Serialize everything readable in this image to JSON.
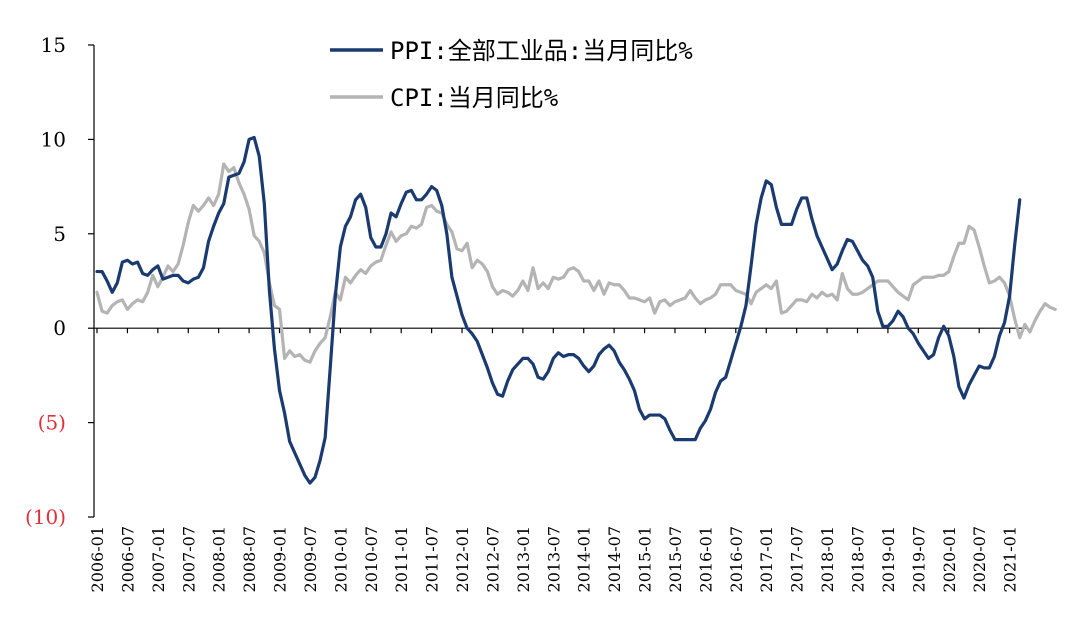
{
  "chart_data": {
    "type": "line",
    "title": "",
    "xlabel": "",
    "ylabel": "",
    "ylim": [
      -10,
      15
    ],
    "yticks": [
      15,
      10,
      5,
      0,
      -5,
      -10
    ],
    "ytick_labels": [
      "15",
      "10",
      "5",
      "0",
      "(5)",
      "(10)"
    ],
    "negative_label_color": "#e0303a",
    "start_month": "2006-01",
    "x_tick_labels": [
      "2006-01",
      "2006-07",
      "2007-01",
      "2007-07",
      "2008-01",
      "2008-07",
      "2009-01",
      "2009-07",
      "2010-01",
      "2010-07",
      "2011-01",
      "2011-07",
      "2012-01",
      "2012-07",
      "2013-01",
      "2013-07",
      "2014-01",
      "2014-07",
      "2015-01",
      "2015-07",
      "2016-01",
      "2016-07",
      "2017-01",
      "2017-07",
      "2018-01",
      "2018-07",
      "2019-01",
      "2019-07",
      "2020-01",
      "2020-07",
      "2021-01"
    ],
    "legend": {
      "position": "top-center"
    },
    "series": [
      {
        "name": "PPI:全部工业品:当月同比%",
        "color": "#1a3a70",
        "values": [
          3.0,
          3.0,
          2.5,
          1.9,
          2.4,
          3.5,
          3.6,
          3.4,
          3.5,
          2.9,
          2.8,
          3.1,
          3.3,
          2.6,
          2.7,
          2.8,
          2.8,
          2.5,
          2.4,
          2.6,
          2.7,
          3.2,
          4.6,
          5.4,
          6.1,
          6.6,
          8.0,
          8.1,
          8.2,
          8.8,
          10.0,
          10.1,
          9.1,
          6.6,
          2.0,
          -1.1,
          -3.3,
          -4.5,
          -6.0,
          -6.6,
          -7.2,
          -7.8,
          -8.2,
          -7.9,
          -7.0,
          -5.8,
          -2.1,
          1.7,
          4.3,
          5.4,
          5.9,
          6.8,
          7.1,
          6.4,
          4.8,
          4.3,
          4.3,
          5.0,
          6.1,
          5.9,
          6.6,
          7.2,
          7.3,
          6.8,
          6.8,
          7.1,
          7.5,
          7.3,
          6.5,
          5.0,
          2.7,
          1.7,
          0.7,
          0.0,
          -0.3,
          -0.7,
          -1.4,
          -2.1,
          -2.9,
          -3.5,
          -3.6,
          -2.8,
          -2.2,
          -1.9,
          -1.6,
          -1.6,
          -1.9,
          -2.6,
          -2.7,
          -2.3,
          -1.6,
          -1.3,
          -1.5,
          -1.4,
          -1.4,
          -1.6,
          -2.0,
          -2.3,
          -2.0,
          -1.4,
          -1.1,
          -0.9,
          -1.2,
          -1.8,
          -2.2,
          -2.7,
          -3.3,
          -4.3,
          -4.8,
          -4.6,
          -4.6,
          -4.6,
          -4.8,
          -5.4,
          -5.9,
          -5.9,
          -5.9,
          -5.9,
          -5.9,
          -5.3,
          -4.9,
          -4.3,
          -3.4,
          -2.8,
          -2.6,
          -1.7,
          -0.8,
          0.1,
          1.2,
          3.3,
          5.5,
          6.9,
          7.8,
          7.6,
          6.4,
          5.5,
          5.5,
          5.5,
          6.3,
          6.9,
          6.9,
          5.8,
          4.9,
          4.3,
          3.7,
          3.1,
          3.4,
          4.1,
          4.7,
          4.6,
          4.1,
          3.6,
          3.3,
          2.7,
          0.9,
          0.1,
          0.1,
          0.4,
          0.9,
          0.6,
          0.0,
          -0.3,
          -0.8,
          -1.2,
          -1.6,
          -1.4,
          -0.5,
          0.1,
          -0.4,
          -1.5,
          -3.1,
          -3.7,
          -3.0,
          -2.5,
          -2.0,
          -2.1,
          -2.1,
          -1.5,
          -0.4,
          0.3,
          1.7,
          4.4,
          6.8
        ]
      },
      {
        "name": "CPI:当月同比%",
        "color": "#b4b4b4",
        "values": [
          1.9,
          0.9,
          0.8,
          1.2,
          1.4,
          1.5,
          1.0,
          1.3,
          1.5,
          1.4,
          1.9,
          2.8,
          2.2,
          2.7,
          3.3,
          3.0,
          3.4,
          4.4,
          5.6,
          6.5,
          6.2,
          6.5,
          6.9,
          6.5,
          7.1,
          8.7,
          8.3,
          8.5,
          7.7,
          7.1,
          6.3,
          4.9,
          4.6,
          4.0,
          2.4,
          1.2,
          1.0,
          -1.6,
          -1.2,
          -1.5,
          -1.4,
          -1.7,
          -1.8,
          -1.2,
          -0.8,
          -0.5,
          0.6,
          1.9,
          1.5,
          2.7,
          2.4,
          2.8,
          3.1,
          2.9,
          3.3,
          3.5,
          3.6,
          4.4,
          5.1,
          4.6,
          4.9,
          5.0,
          5.4,
          5.3,
          5.5,
          6.4,
          6.5,
          6.2,
          6.1,
          5.5,
          5.1,
          4.2,
          4.1,
          4.5,
          3.2,
          3.6,
          3.4,
          3.0,
          2.2,
          1.8,
          2.0,
          1.9,
          1.7,
          2.0,
          2.5,
          2.0,
          3.2,
          2.1,
          2.4,
          2.1,
          2.7,
          2.6,
          2.7,
          3.1,
          3.2,
          3.0,
          2.5,
          2.5,
          2.0,
          2.5,
          1.8,
          2.4,
          2.3,
          2.3,
          2.0,
          1.6,
          1.6,
          1.5,
          1.4,
          1.6,
          0.8,
          1.4,
          1.5,
          1.2,
          1.4,
          1.5,
          1.6,
          2.0,
          1.6,
          1.3,
          1.5,
          1.6,
          1.8,
          2.3,
          2.3,
          2.3,
          2.0,
          1.9,
          1.8,
          1.3,
          1.9,
          2.1,
          2.3,
          2.1,
          2.5,
          0.8,
          0.9,
          1.2,
          1.5,
          1.5,
          1.4,
          1.8,
          1.6,
          1.9,
          1.7,
          1.8,
          1.5,
          2.9,
          2.1,
          1.8,
          1.8,
          1.9,
          2.1,
          2.3,
          2.5,
          2.5,
          2.5,
          2.2,
          1.9,
          1.7,
          1.5,
          2.3,
          2.5,
          2.7,
          2.7,
          2.7,
          2.8,
          2.8,
          3.0,
          3.8,
          4.5,
          4.5,
          5.4,
          5.2,
          4.3,
          3.3,
          2.4,
          2.5,
          2.7,
          2.4,
          1.7,
          0.5,
          -0.5,
          0.2,
          -0.2,
          0.4,
          0.9,
          1.3,
          1.1,
          1.0
        ]
      }
    ]
  }
}
